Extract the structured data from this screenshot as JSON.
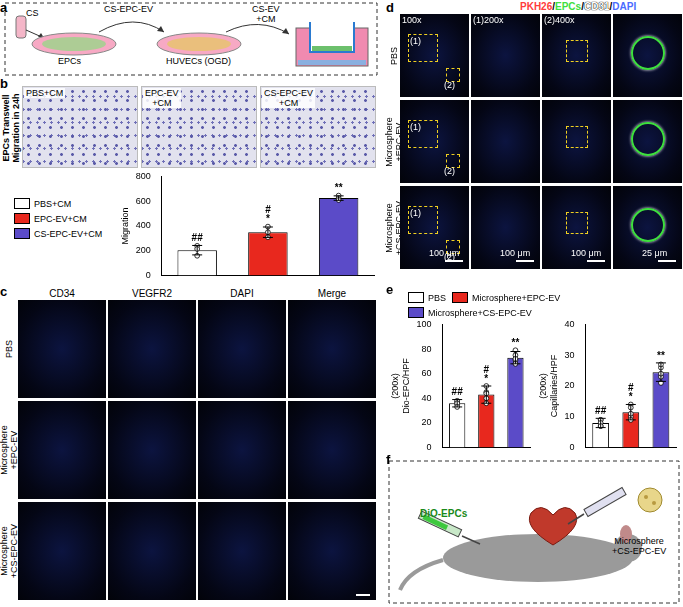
{
  "panel_labels": [
    "a",
    "b",
    "c",
    "d",
    "e",
    "f"
  ],
  "a": {
    "tube": "CS",
    "arrow1": "CS-EPC-EV",
    "arrow2": [
      "CS-EV",
      "+CM"
    ],
    "dish1": "EPCs",
    "dish2": "HUVECs (OGD)"
  },
  "b": {
    "side_title": [
      "EPCs Transwell",
      "Migration in 24h"
    ],
    "image_titles": [
      [
        "PBS+CM"
      ],
      [
        "EPC-EV",
        "+CM"
      ],
      [
        "CS-EPC-EV",
        "+CM"
      ]
    ]
  },
  "c": {
    "columns": [
      "CD34",
      "VEGFR2",
      "DAPI",
      "Merge"
    ],
    "rows": [
      [
        "PBS"
      ],
      [
        "Microsphere",
        "+EPC-EV"
      ],
      [
        "Microsphere",
        "+CS-EPC-EV"
      ]
    ]
  },
  "d": {
    "stain_legend": [
      {
        "text": "PKH26",
        "color": "#ff3b3b"
      },
      {
        "text": "EPCs",
        "color": "#3ee03e"
      },
      {
        "text": "CD31",
        "color": "#ffffff"
      },
      {
        "text": "DAPI",
        "color": "#4a6bff"
      }
    ],
    "separator": "/",
    "columns": [
      "100x",
      "(1)200x",
      "(2)400x"
    ],
    "rows": [
      [
        "PBS"
      ],
      [
        "Microsphere",
        "+EPC-EV"
      ],
      [
        "Microsphere",
        "+CS-EPC-EV"
      ]
    ],
    "inset_marks": [
      "(1)",
      "(2)"
    ],
    "scale_bars": [
      "100 μm",
      "100 μm",
      "100 μm",
      "25 μm"
    ]
  },
  "f": {
    "cells": "DiO-EPCs",
    "treatment": [
      "Microsphere",
      "+CS-EPC-EV"
    ]
  },
  "chart_data": [
    {
      "type": "bar",
      "categories": [
        "PBS+CM",
        "EPC-EV+CM",
        "CS-EPC-EV+CM"
      ],
      "values": [
        205,
        350,
        625
      ],
      "errors": [
        38,
        42,
        18
      ],
      "points": [
        [
          160,
          215,
          240
        ],
        [
          310,
          350,
          395
        ],
        [
          610,
          625,
          645
        ]
      ],
      "annotations": [
        [
          "##"
        ],
        [
          "#",
          "*"
        ],
        [
          "**"
        ]
      ],
      "colors": [
        "#ffffff",
        "#e8281e",
        "#5b4bc8"
      ],
      "ylabel": "Migration",
      "ylim": [
        0,
        800
      ],
      "yticks": [
        0,
        200,
        400,
        600,
        800
      ],
      "grid": false,
      "tick_labels": "y",
      "legend": "left"
    },
    {
      "type": "bar",
      "categories": [
        "PBS",
        "Microsphere+EPC-EV",
        "Microsphere+CS-EPC-EV"
      ],
      "values": [
        36,
        43,
        73
      ],
      "errors": [
        3,
        7,
        5
      ],
      "points": [
        [
          33,
          36,
          38,
          35,
          37
        ],
        [
          36,
          40,
          44,
          50,
          45
        ],
        [
          68,
          72,
          75,
          79,
          71
        ]
      ],
      "annotations": [
        [
          "##"
        ],
        [
          "#",
          "*"
        ],
        [
          "**"
        ]
      ],
      "colors": [
        "#ffffff",
        "#e8281e",
        "#5b4bc8"
      ],
      "ylabel": [
        "(200x)",
        "Dio-EPC/HPF"
      ],
      "ylim": [
        0,
        100
      ],
      "yticks": [
        0,
        20,
        40,
        60,
        80,
        100
      ],
      "grid": false,
      "tick_labels": "y",
      "legend": "top"
    },
    {
      "type": "bar",
      "categories": [
        "PBS",
        "Microsphere+EPC-EV",
        "Microsphere+CS-EPC-EV"
      ],
      "values": [
        8,
        11.5,
        24.5
      ],
      "errors": [
        1.5,
        2.5,
        3
      ],
      "points": [
        [
          7,
          8,
          9,
          7,
          9
        ],
        [
          9,
          11,
          13,
          14,
          10
        ],
        [
          21,
          24,
          27,
          26,
          23
        ]
      ],
      "annotations": [
        [
          "##"
        ],
        [
          "#",
          "*"
        ],
        [
          "**"
        ]
      ],
      "colors": [
        "#ffffff",
        "#e8281e",
        "#5b4bc8"
      ],
      "ylabel": [
        "(200x)",
        "Capillaries/HPF"
      ],
      "ylim": [
        0,
        40
      ],
      "yticks": [
        0,
        10,
        20,
        30,
        40
      ],
      "grid": false,
      "tick_labels": "y"
    }
  ]
}
